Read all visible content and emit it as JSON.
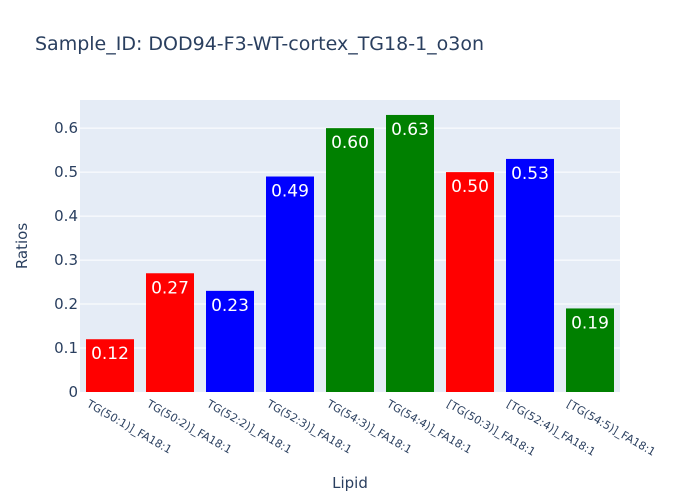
{
  "chart_data": {
    "type": "bar",
    "title": "Sample_ID: DOD94-F3-WT-cortex_TG18-1_o3on",
    "xlabel": "Lipid",
    "ylabel": "Ratios",
    "ylim": [
      0,
      0.664
    ],
    "yticks": [
      0,
      0.1,
      0.2,
      0.3,
      0.4,
      0.5,
      0.6
    ],
    "ytick_labels": [
      "0",
      "0.1",
      "0.2",
      "0.3",
      "0.4",
      "0.5",
      "0.6"
    ],
    "grid": true,
    "categories": [
      "TG(50:1)]_FA18:1",
      "TG(50:2)]_FA18:1",
      "TG(52:2)]_FA18:1",
      "TG(52:3)]_FA18:1",
      "TG(54:3)]_FA18:1",
      "TG(54:4)]_FA18:1",
      "[TG(50:3)]_FA18:1",
      "[TG(52:4)]_FA18:1",
      "[TG(54:5)]_FA18:1"
    ],
    "values": [
      0.12,
      0.27,
      0.23,
      0.49,
      0.6,
      0.63,
      0.5,
      0.53,
      0.19
    ],
    "data_labels": [
      "0.12",
      "0.27",
      "0.23",
      "0.49",
      "0.60",
      "0.63",
      "0.50",
      "0.53",
      "0.19"
    ],
    "colors": [
      "#ff0000",
      "#ff0000",
      "#0000ff",
      "#0000ff",
      "#008000",
      "#008000",
      "#ff0000",
      "#0000ff",
      "#008000"
    ],
    "plot_bg": "#e5ecf6"
  }
}
